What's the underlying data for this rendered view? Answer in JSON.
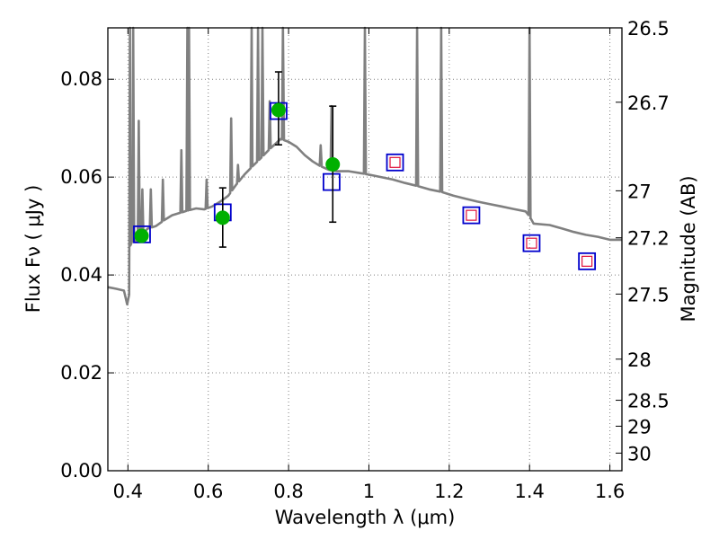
{
  "chart_data": {
    "type": "scatter",
    "title": "",
    "xlabel": "Wavelength  λ (μm)",
    "ylabel": "Flux  Fν  ( μJy )",
    "ylabel_right": "Magnitude (AB)",
    "xlim": [
      0.35,
      1.63
    ],
    "ylim": [
      0.0,
      0.0905
    ],
    "grid": true,
    "grid_style": "dotted",
    "x_ticks": [
      0.4,
      0.6,
      0.8,
      1.0,
      1.2,
      1.4,
      1.6
    ],
    "x_tick_labels": [
      "0.4",
      "0.6",
      "0.8",
      "1",
      "1.2",
      "1.4",
      "1.6"
    ],
    "y_ticks": [
      0.0,
      0.02,
      0.04,
      0.06,
      0.08
    ],
    "y_tick_labels": [
      "0.00",
      "0.02",
      "0.04",
      "0.06",
      "0.08"
    ],
    "right_ticks": [
      {
        "label": "26.5",
        "flux": 0.0905
      },
      {
        "label": "26.7",
        "flux": 0.0753
      },
      {
        "label": "27",
        "flux": 0.0572
      },
      {
        "label": "27.2",
        "flux": 0.0476
      },
      {
        "label": "27.5",
        "flux": 0.0361
      },
      {
        "label": "28",
        "flux": 0.0228
      },
      {
        "label": "28.5",
        "flux": 0.0144
      },
      {
        "label": "29",
        "flux": 0.0091
      },
      {
        "label": "30",
        "flux": 0.0036
      }
    ],
    "colors": {
      "spectrum": "#808080",
      "measured": "#00b000",
      "model_box": "#0000cc",
      "model_inner": "#e0103a",
      "error": "#000000",
      "grid": "#808080"
    },
    "series": [
      {
        "kind": "spectrum",
        "points": [
          [
            0.35,
            0.0375
          ],
          [
            0.37,
            0.0372
          ],
          [
            0.39,
            0.0368
          ],
          [
            0.398,
            0.034
          ],
          [
            0.403,
            0.036
          ],
          [
            0.406,
            0.046
          ],
          [
            0.41,
            0.0468
          ],
          [
            0.42,
            0.047
          ],
          [
            0.43,
            0.0482
          ],
          [
            0.44,
            0.0488
          ],
          [
            0.45,
            0.0495
          ],
          [
            0.47,
            0.05
          ],
          [
            0.49,
            0.0512
          ],
          [
            0.51,
            0.0522
          ],
          [
            0.53,
            0.0527
          ],
          [
            0.55,
            0.0532
          ],
          [
            0.57,
            0.0536
          ],
          [
            0.59,
            0.0534
          ],
          [
            0.61,
            0.054
          ],
          [
            0.63,
            0.055
          ],
          [
            0.65,
            0.0562
          ],
          [
            0.67,
            0.0585
          ],
          [
            0.69,
            0.0605
          ],
          [
            0.71,
            0.0622
          ],
          [
            0.73,
            0.0638
          ],
          [
            0.75,
            0.0655
          ],
          [
            0.77,
            0.067
          ],
          [
            0.78,
            0.0678
          ],
          [
            0.8,
            0.0672
          ],
          [
            0.82,
            0.0662
          ],
          [
            0.84,
            0.0645
          ],
          [
            0.86,
            0.0632
          ],
          [
            0.88,
            0.0622
          ],
          [
            0.9,
            0.0615
          ],
          [
            0.92,
            0.0612
          ],
          [
            0.95,
            0.0612
          ],
          [
            0.98,
            0.0608
          ],
          [
            1.0,
            0.0605
          ],
          [
            1.03,
            0.06
          ],
          [
            1.06,
            0.0595
          ],
          [
            1.09,
            0.0588
          ],
          [
            1.12,
            0.0582
          ],
          [
            1.15,
            0.0575
          ],
          [
            1.18,
            0.057
          ],
          [
            1.21,
            0.0562
          ],
          [
            1.24,
            0.0556
          ],
          [
            1.27,
            0.055
          ],
          [
            1.3,
            0.0545
          ],
          [
            1.33,
            0.054
          ],
          [
            1.36,
            0.0535
          ],
          [
            1.39,
            0.053
          ],
          [
            1.4,
            0.052
          ],
          [
            1.41,
            0.0505
          ],
          [
            1.45,
            0.0502
          ],
          [
            1.48,
            0.0495
          ],
          [
            1.51,
            0.0488
          ],
          [
            1.54,
            0.0482
          ],
          [
            1.57,
            0.0478
          ],
          [
            1.6,
            0.0472
          ],
          [
            1.63,
            0.0472
          ]
        ]
      },
      {
        "kind": "emission_lines",
        "lines": [
          [
            0.405,
            0.0905
          ],
          [
            0.413,
            0.0905
          ],
          [
            0.427,
            0.0715
          ],
          [
            0.436,
            0.0575
          ],
          [
            0.457,
            0.0575
          ],
          [
            0.487,
            0.0595
          ],
          [
            0.533,
            0.0655
          ],
          [
            0.548,
            0.0905
          ],
          [
            0.552,
            0.0905
          ],
          [
            0.596,
            0.0595
          ],
          [
            0.657,
            0.072
          ],
          [
            0.674,
            0.0625
          ],
          [
            0.708,
            0.0905
          ],
          [
            0.724,
            0.0905
          ],
          [
            0.735,
            0.0905
          ],
          [
            0.753,
            0.0755
          ],
          [
            0.786,
            0.0905
          ],
          [
            0.88,
            0.0665
          ],
          [
            0.907,
            0.0745
          ],
          [
            0.99,
            0.0905
          ],
          [
            1.12,
            0.0905
          ],
          [
            1.18,
            0.0905
          ],
          [
            1.4,
            0.0905
          ]
        ]
      },
      {
        "name": "",
        "kind": "measured",
        "points": [
          {
            "x": 0.434,
            "y": 0.048
          },
          {
            "x": 0.636,
            "y": 0.0517,
            "err_lo": 0.0457,
            "err_hi": 0.0578
          },
          {
            "x": 0.775,
            "y": 0.0737,
            "err_lo": 0.0666,
            "err_hi": 0.0815
          },
          {
            "x": 0.91,
            "y": 0.0626,
            "err_lo": 0.0508,
            "err_hi": 0.0745
          }
        ]
      },
      {
        "name": "",
        "kind": "model",
        "points": [
          {
            "x": 0.435,
            "y": 0.0483
          },
          {
            "x": 0.636,
            "y": 0.0528
          },
          {
            "x": 0.775,
            "y": 0.0735
          },
          {
            "x": 0.907,
            "y": 0.059
          },
          {
            "x": 1.065,
            "y": 0.063,
            "inner": true
          },
          {
            "x": 1.255,
            "y": 0.0522,
            "inner": true
          },
          {
            "x": 1.405,
            "y": 0.0465,
            "inner": true
          },
          {
            "x": 1.543,
            "y": 0.0428,
            "inner": true
          }
        ]
      }
    ]
  }
}
